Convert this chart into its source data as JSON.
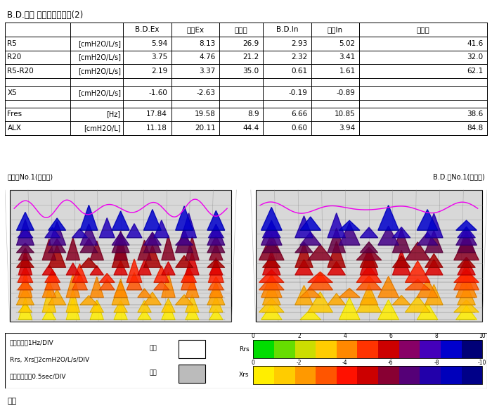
{
  "title": "B.D.測定 有効データ比較(2)",
  "table_headers": [
    "",
    "",
    "B.D.Ex",
    "通常Ex",
    "改善率",
    "B.D.In",
    "通常In",
    "改善率"
  ],
  "table_rows": [
    [
      "R5",
      "[cmH2O/L/s]",
      "5.94",
      "8.13",
      "26.9",
      "2.93",
      "5.02",
      "41.6"
    ],
    [
      "R20",
      "[cmH2O/L/s]",
      "3.75",
      "4.76",
      "21.2",
      "2.32",
      "3.41",
      "32.0"
    ],
    [
      "R5-R20",
      "[cmH2O/L/s]",
      "2.19",
      "3.37",
      "35.0",
      "0.61",
      "1.61",
      "62.1"
    ],
    [
      "",
      "",
      "",
      "",
      "",
      "",
      "",
      ""
    ],
    [
      "X5",
      "[cmH2O/L/s]",
      "-1.60",
      "-2.63",
      "",
      "-0.19",
      "-0.89",
      ""
    ],
    [
      "",
      "",
      "",
      "",
      "",
      "",
      "",
      ""
    ],
    [
      "Fres",
      "[Hz]",
      "17.84",
      "19.58",
      "8.9",
      "6.66",
      "10.85",
      "38.6"
    ],
    [
      "ALX",
      "[cmH2O/L]",
      "11.18",
      "20.11",
      "44.4",
      "0.60",
      "3.94",
      "84.8"
    ]
  ],
  "note_left": "通常：No.1(パルス)",
  "note_right": "B.D.：No.1(パルス)",
  "legend_line1": "周波数　：1Hz/DIV",
  "legend_line2": "Rrs, Xrs：2cmH2O/L/s/DIV",
  "legend_line3": "時間経過　：0.5sec/DIV",
  "breath_ex": "呼気",
  "breath_in": "吸気",
  "colorbar_rrs": "Rrs",
  "colorbar_xrs": "Xrs",
  "rrs_ticks": [
    "0",
    "2",
    "4",
    "6",
    "8",
    "10"
  ],
  "xrs_ticks": [
    "0",
    "-2",
    "-4",
    "-6",
    "-8",
    "-10"
  ],
  "footer": "備考",
  "bg_color": "#ffffff"
}
